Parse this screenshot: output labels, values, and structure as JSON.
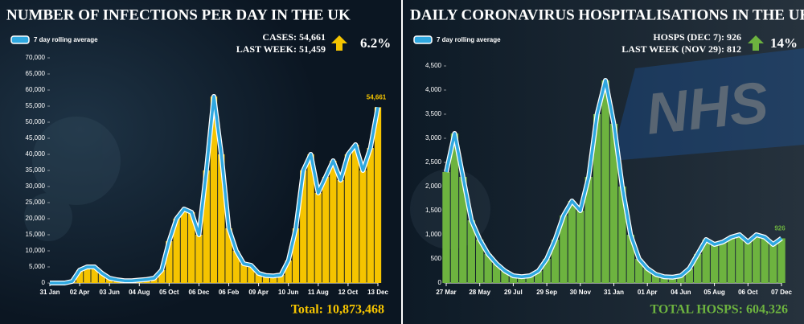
{
  "chart_data": [
    {
      "type": "bar-line",
      "title": "NUMBER OF INFECTIONS PER DAY IN THE UK",
      "stat_current": "CASES: 54,661",
      "stat_previous": "LAST WEEK: 51,459",
      "change": "6.2%",
      "total": "Total: 10,873,468",
      "categories": [
        "31 Jan",
        null,
        null,
        null,
        "02 Apr",
        null,
        null,
        null,
        "03 Jun",
        null,
        null,
        null,
        "04 Aug",
        null,
        null,
        null,
        "05 Oct",
        null,
        null,
        null,
        "06 Dec",
        null,
        null,
        null,
        "06 Feb",
        null,
        null,
        null,
        "09 Apr",
        null,
        null,
        null,
        "10 Jun",
        null,
        null,
        null,
        "11 Aug",
        null,
        null,
        null,
        "12 Oct",
        null,
        null,
        null,
        "13 Dec"
      ],
      "bar_color": "#f5c400",
      "series": [
        {
          "name": "7 day rolling average",
          "color": "#2fa8e0",
          "values": [
            0,
            0,
            0,
            500,
            4000,
            5000,
            5000,
            3000,
            1500,
            1000,
            700,
            700,
            900,
            1100,
            1500,
            4000,
            13000,
            20000,
            23000,
            22000,
            15000,
            35000,
            58000,
            40000,
            17000,
            10000,
            6000,
            5500,
            3000,
            2300,
            2200,
            2500,
            7000,
            17000,
            35000,
            40000,
            28000,
            33000,
            38000,
            32000,
            40000,
            43000,
            35000,
            42000,
            54661
          ],
          "value_labels": [
            null,
            null,
            null,
            null,
            null,
            null,
            null,
            null,
            null,
            null,
            null,
            null,
            null,
            null,
            null,
            null,
            null,
            null,
            null,
            null,
            null,
            null,
            null,
            null,
            null,
            null,
            null,
            null,
            null,
            null,
            null,
            null,
            null,
            null,
            null,
            null,
            null,
            null,
            null,
            null,
            null,
            null,
            null,
            null,
            "54,661"
          ]
        }
      ],
      "ylim": [
        0,
        70000
      ],
      "yticks": [
        0,
        {
          "value": 5000,
          "label": "5,000"
        },
        {
          "value": 10000,
          "label": "10,000"
        },
        {
          "value": 15000,
          "label": "15,000"
        },
        {
          "value": 20000,
          "label": "20,000"
        },
        {
          "value": 25000,
          "label": "25,000"
        },
        {
          "value": 30000,
          "label": "30,000"
        },
        {
          "value": 35000,
          "label": "35,000"
        },
        {
          "value": 40000,
          "label": "40,000"
        },
        {
          "value": 45000,
          "label": "45,000"
        },
        {
          "value": 50000,
          "label": "50,000"
        },
        {
          "value": 55000,
          "label": "55,000"
        },
        {
          "value": 60000,
          "label": "60,000"
        },
        {
          "value": 65000,
          "label": "65,000"
        },
        {
          "value": 70000,
          "label": "70,000"
        }
      ]
    },
    {
      "type": "bar-line",
      "title": "DAILY CORONAVIRUS HOSPITALISATIONS  IN THE UK",
      "stat_current": "HOSPS (DEC 7): 926",
      "stat_previous": "LAST WEEK (NOV 29): 812",
      "change": "14%",
      "total": "TOTAL HOSPS: 604,326",
      "categories": [
        "27 Mar",
        null,
        null,
        null,
        "28 May",
        null,
        null,
        null,
        "29 Jul",
        null,
        null,
        null,
        "29 Sep",
        null,
        null,
        null,
        "30 Nov",
        null,
        null,
        null,
        "31 Jan",
        null,
        null,
        null,
        "01 Apr",
        null,
        null,
        null,
        "04 Jun",
        null,
        null,
        null,
        "05 Aug",
        null,
        null,
        null,
        "06 Oct",
        null,
        null,
        null,
        "07 Dec"
      ],
      "bar_color": "#6db33f",
      "series": [
        {
          "name": "7 day rolling average",
          "color": "#2fa8e0",
          "values": [
            2300,
            3100,
            2200,
            1300,
            900,
            600,
            400,
            250,
            150,
            130,
            150,
            250,
            500,
            900,
            1400,
            1700,
            1500,
            2200,
            3500,
            4200,
            3300,
            2000,
            1000,
            500,
            300,
            180,
            130,
            120,
            150,
            300,
            600,
            900,
            800,
            850,
            950,
            1000,
            850,
            1000,
            950,
            800,
            926
          ]
        }
      ],
      "ylim": [
        0,
        4700
      ],
      "yticks": [
        0,
        500,
        {
          "value": 1000,
          "label": "1,000"
        },
        {
          "value": 1500,
          "label": "1,500"
        },
        {
          "value": 2000,
          "label": "2,000"
        },
        {
          "value": 2500,
          "label": "2,500"
        },
        {
          "value": 3000,
          "label": "3,000"
        },
        {
          "value": 3500,
          "label": "3,500"
        },
        {
          "value": 4000,
          "label": "4,000"
        },
        {
          "value": 4500,
          "label": "4,500"
        }
      ]
    }
  ]
}
